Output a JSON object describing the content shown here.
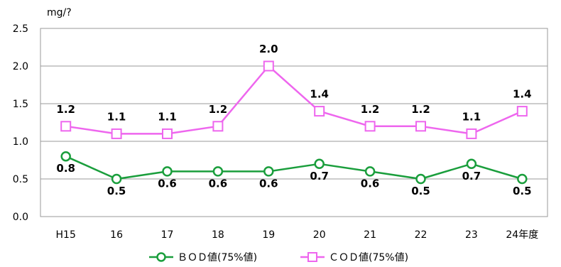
{
  "chart_data": {
    "type": "line",
    "unit_label": "mg/?",
    "categories": [
      "H15",
      "16",
      "17",
      "18",
      "19",
      "20",
      "21",
      "22",
      "23",
      "24年度"
    ],
    "ylim": [
      0,
      2.5
    ],
    "yticks": [
      "0.0",
      "0.5",
      "1.0",
      "1.5",
      "2.0",
      "2.5"
    ],
    "grid": true,
    "legend_position": "bottom",
    "series": [
      {
        "name": "ＢＯＤ値(75%値)",
        "values": [
          0.8,
          0.5,
          0.6,
          0.6,
          0.6,
          0.7,
          0.6,
          0.5,
          0.7,
          0.5
        ],
        "labels": [
          "0.8",
          "0.5",
          "0.6",
          "0.6",
          "0.6",
          "0.7",
          "0.6",
          "0.5",
          "0.7",
          "0.5"
        ],
        "color": "#1a9e3c",
        "marker": "circle",
        "label_position": "below"
      },
      {
        "name": "ＣＯＤ値(75%値)",
        "values": [
          1.2,
          1.1,
          1.1,
          1.2,
          2.0,
          1.4,
          1.2,
          1.2,
          1.1,
          1.4
        ],
        "labels": [
          "1.2",
          "1.1",
          "1.1",
          "1.2",
          "2.0",
          "1.4",
          "1.2",
          "1.2",
          "1.1",
          "1.4"
        ],
        "color": "#ee66ee",
        "marker": "square",
        "label_position": "above"
      }
    ]
  }
}
